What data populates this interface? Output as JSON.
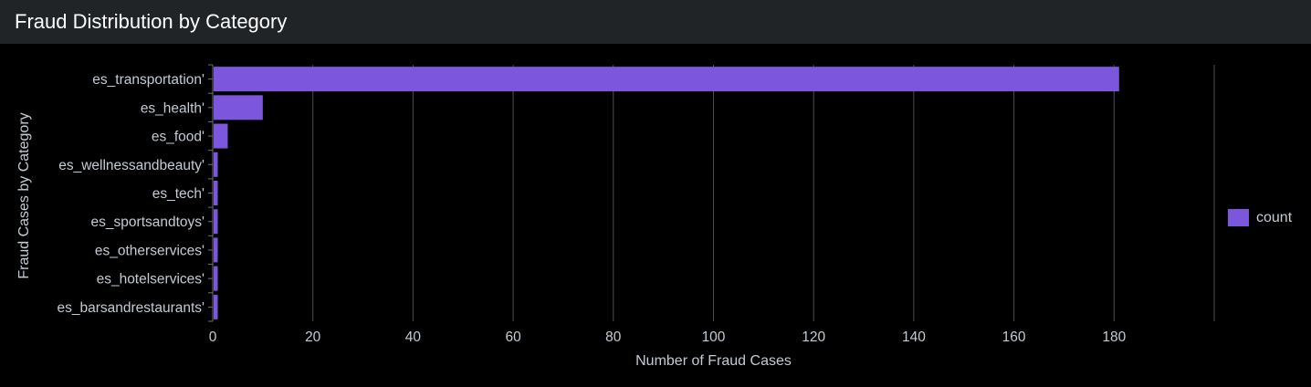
{
  "panel": {
    "title": "Fraud Distribution by Category"
  },
  "chart_data": {
    "type": "bar",
    "orientation": "horizontal",
    "categories": [
      "es_transportation'",
      "es_health'",
      "es_food'",
      "es_wellnessandbeauty'",
      "es_tech'",
      "es_sportsandtoys'",
      "es_otherservices'",
      "es_hotelservices'",
      "es_barsandrestaurants'"
    ],
    "series": [
      {
        "name": "count",
        "values": [
          181,
          10,
          3,
          1,
          1,
          1,
          1,
          1,
          1
        ]
      }
    ],
    "xlabel": "Number of Fraud Cases",
    "ylabel": "Fraud Cases by Category",
    "xlim": [
      0,
      200
    ],
    "xticks": [
      0,
      20,
      40,
      60,
      80,
      100,
      120,
      140,
      160,
      180
    ],
    "grid": true,
    "legend_position": "right",
    "colors": {
      "bar": "#7c56dc",
      "grid": "#4a4e53",
      "axis": "#6b7075",
      "background": "#000000",
      "header": "#212427"
    }
  }
}
